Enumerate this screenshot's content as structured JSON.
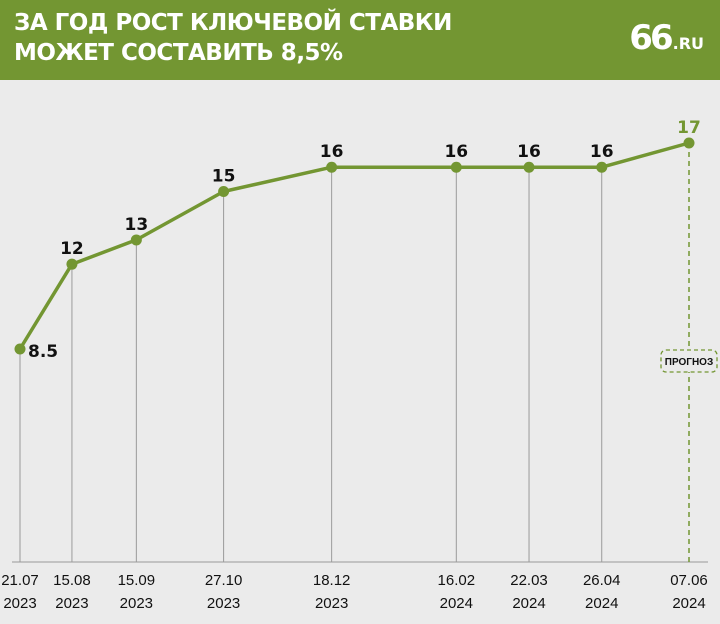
{
  "header": {
    "title": "ЗА ГОД РОСТ КЛЮЧЕВОЙ СТАВКИ\nМОЖЕТ СОСТАВИТЬ 8,5%",
    "logo_number": "66",
    "logo_suffix": ".RU"
  },
  "colors": {
    "header_bg": "#739632",
    "line": "#739632",
    "background": "#ebebeb",
    "gridline": "#9a9a9a",
    "label": "#111111"
  },
  "forecast_label": "ПРОГНОЗ",
  "chart_data": {
    "type": "line",
    "title": "ЗА ГОД РОСТ КЛЮЧЕВОЙ СТАВКИ МОЖЕТ СОСТАВИТЬ 8,5%",
    "x": [
      "2023-07-21",
      "2023-08-15",
      "2023-09-15",
      "2023-10-27",
      "2023-12-18",
      "2024-02-16",
      "2024-03-22",
      "2024-04-26",
      "2024-06-07"
    ],
    "tick_labels": [
      {
        "day": "21.07",
        "year": "2023"
      },
      {
        "day": "15.08",
        "year": "2023"
      },
      {
        "day": "15.09",
        "year": "2023"
      },
      {
        "day": "27.10",
        "year": "2023"
      },
      {
        "day": "18.12",
        "year": "2023"
      },
      {
        "day": "16.02",
        "year": "2024"
      },
      {
        "day": "22.03",
        "year": "2024"
      },
      {
        "day": "26.04",
        "year": "2024"
      },
      {
        "day": "07.06",
        "year": "2024"
      }
    ],
    "values": [
      8.5,
      12,
      13,
      15,
      16,
      16,
      16,
      16,
      17
    ],
    "value_labels": [
      "8.5",
      "12",
      "13",
      "15",
      "16",
      "16",
      "16",
      "16",
      "17"
    ],
    "forecast_from_index": 8,
    "xlabel": "",
    "ylabel": "",
    "grid": "vertical",
    "legend": "none"
  }
}
